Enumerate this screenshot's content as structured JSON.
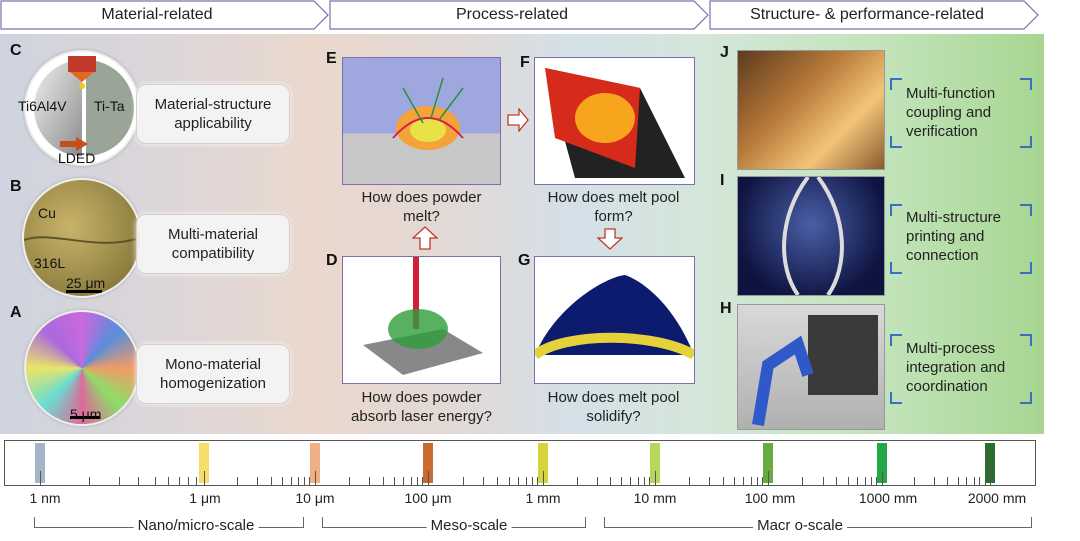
{
  "header": {
    "material": "Material-related",
    "process": "Process-related",
    "structure": "Structure- & performance-related"
  },
  "panels": {
    "C": {
      "letter": "C",
      "left_label": "Ti6Al4V",
      "right_label": "Ti-Ta",
      "bottom_label": "LDED",
      "box": "Material-structure applicability"
    },
    "B": {
      "letter": "B",
      "top_label": "Cu",
      "bottom_label": "316L",
      "scale": "25 μm",
      "box": "Multi-material compatibility"
    },
    "A": {
      "letter": "A",
      "scale": "5 μm",
      "box": "Mono-material homogenization"
    },
    "E": {
      "letter": "E",
      "question": "How does powder melt?"
    },
    "D": {
      "letter": "D",
      "question": "How does powder absorb laser energy?"
    },
    "F": {
      "letter": "F",
      "question": "How does melt pool form?"
    },
    "G": {
      "letter": "G",
      "question": "How does melt pool solidify?"
    },
    "J": {
      "letter": "J",
      "text": "Multi-function coupling and verification"
    },
    "I": {
      "letter": "I",
      "text": "Multi-structure printing and connection"
    },
    "H": {
      "letter": "H",
      "text": "Multi-process integration and coordination"
    }
  },
  "scale": {
    "ticks": [
      "1 nm",
      "1 μm",
      "10 μm",
      "100 μm",
      "1 mm",
      "10 mm",
      "100 mm",
      "1000 mm",
      "2000 mm"
    ],
    "marker_colors": [
      "#a6b4c8",
      "#f7dd6a",
      "#f0b085",
      "#c96a2e",
      "#d7d33a",
      "#b5d75a",
      "#6aab3e",
      "#22a84a",
      "#2e6b2e"
    ],
    "groups": [
      "Nano/micro-scale",
      "Meso-scale",
      "Macr o-scale"
    ]
  },
  "colors": {
    "arrow_red": "#c0392b",
    "accent_blue": "#3b6fc4"
  }
}
